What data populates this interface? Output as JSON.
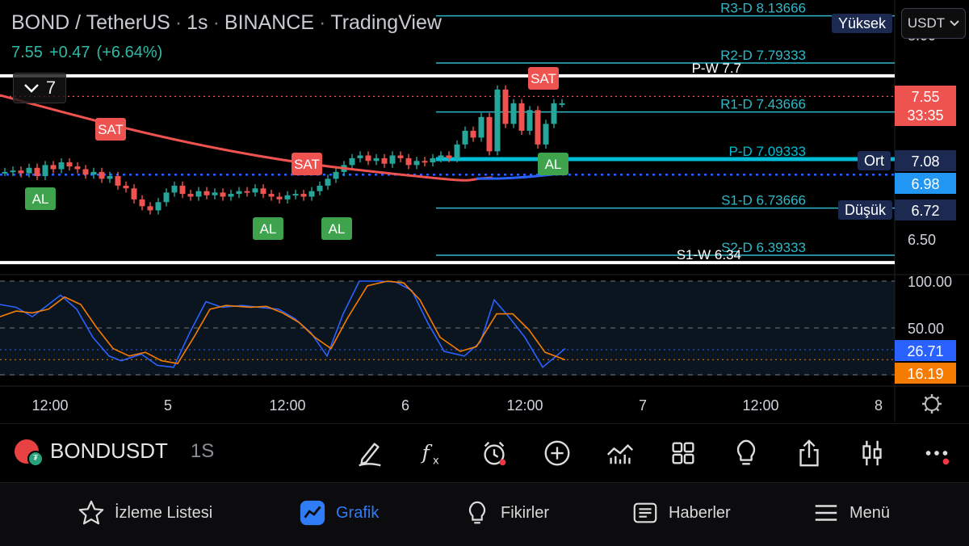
{
  "header": {
    "symbol_pair": "BOND / TetherUS",
    "interval": "1s",
    "exchange": "BINANCE",
    "source": "TradingView",
    "last_price": "7.55",
    "change": "+0.47",
    "change_pct": "(+6.64%)",
    "indicator_count": "7"
  },
  "currency_selector": "USDT",
  "labels": {
    "high": "Yüksek",
    "mid": "Ort",
    "low": "Düşük"
  },
  "price_axis": {
    "ticks": [
      "8.00",
      "6.50"
    ],
    "current_price": "7.55",
    "countdown": "33:35",
    "ort_value": "7.08",
    "ma_value": "6.98",
    "low_value": "6.72"
  },
  "pivots": [
    {
      "label": "R3-D 8.13666",
      "price": 8.13666,
      "color": "#2fb8c8"
    },
    {
      "label": "R2-D 7.79333",
      "price": 7.79333,
      "color": "#2fb8c8"
    },
    {
      "label": "P-W 7.7",
      "price": 7.7,
      "color": "#ffffff"
    },
    {
      "label": "R1-D 7.43666",
      "price": 7.43666,
      "color": "#2fb8c8"
    },
    {
      "label": "P-D 7.09333",
      "price": 7.09333,
      "color": "#00bcd4"
    },
    {
      "label": "S1-D 6.73666",
      "price": 6.73666,
      "color": "#2fb8c8"
    },
    {
      "label": "S2-D 6.39333",
      "price": 6.39333,
      "color": "#2fb8c8"
    },
    {
      "label": "S1-W 6.34",
      "price": 6.34,
      "color": "#ffffff"
    }
  ],
  "signals": {
    "sell": "SAT",
    "buy": "AL"
  },
  "oscillator": {
    "levels": [
      "100.00",
      "50.00"
    ],
    "k_value": "26.71",
    "d_value": "16.19"
  },
  "time_axis": [
    "12:00",
    "5",
    "12:00",
    "6",
    "12:00",
    "7",
    "12:00",
    "8"
  ],
  "toolbar": {
    "symbol": "BONDUSDT",
    "timeframe": "1S"
  },
  "nav": [
    "İzleme Listesi",
    "Grafik",
    "Fikirler",
    "Haberler",
    "Menü"
  ],
  "colors": {
    "up": "#26a69a",
    "down": "#ef5350",
    "accent": "#2f7cf6",
    "stoch_k": "#2962ff",
    "stoch_d": "#f57c00"
  },
  "icons": [
    "pencil-icon",
    "function-icon",
    "alarm-icon",
    "plus-circle-icon",
    "indicators-icon",
    "layout-grid-icon",
    "lightbulb-icon",
    "share-icon",
    "candles-icon",
    "more-icon"
  ]
}
